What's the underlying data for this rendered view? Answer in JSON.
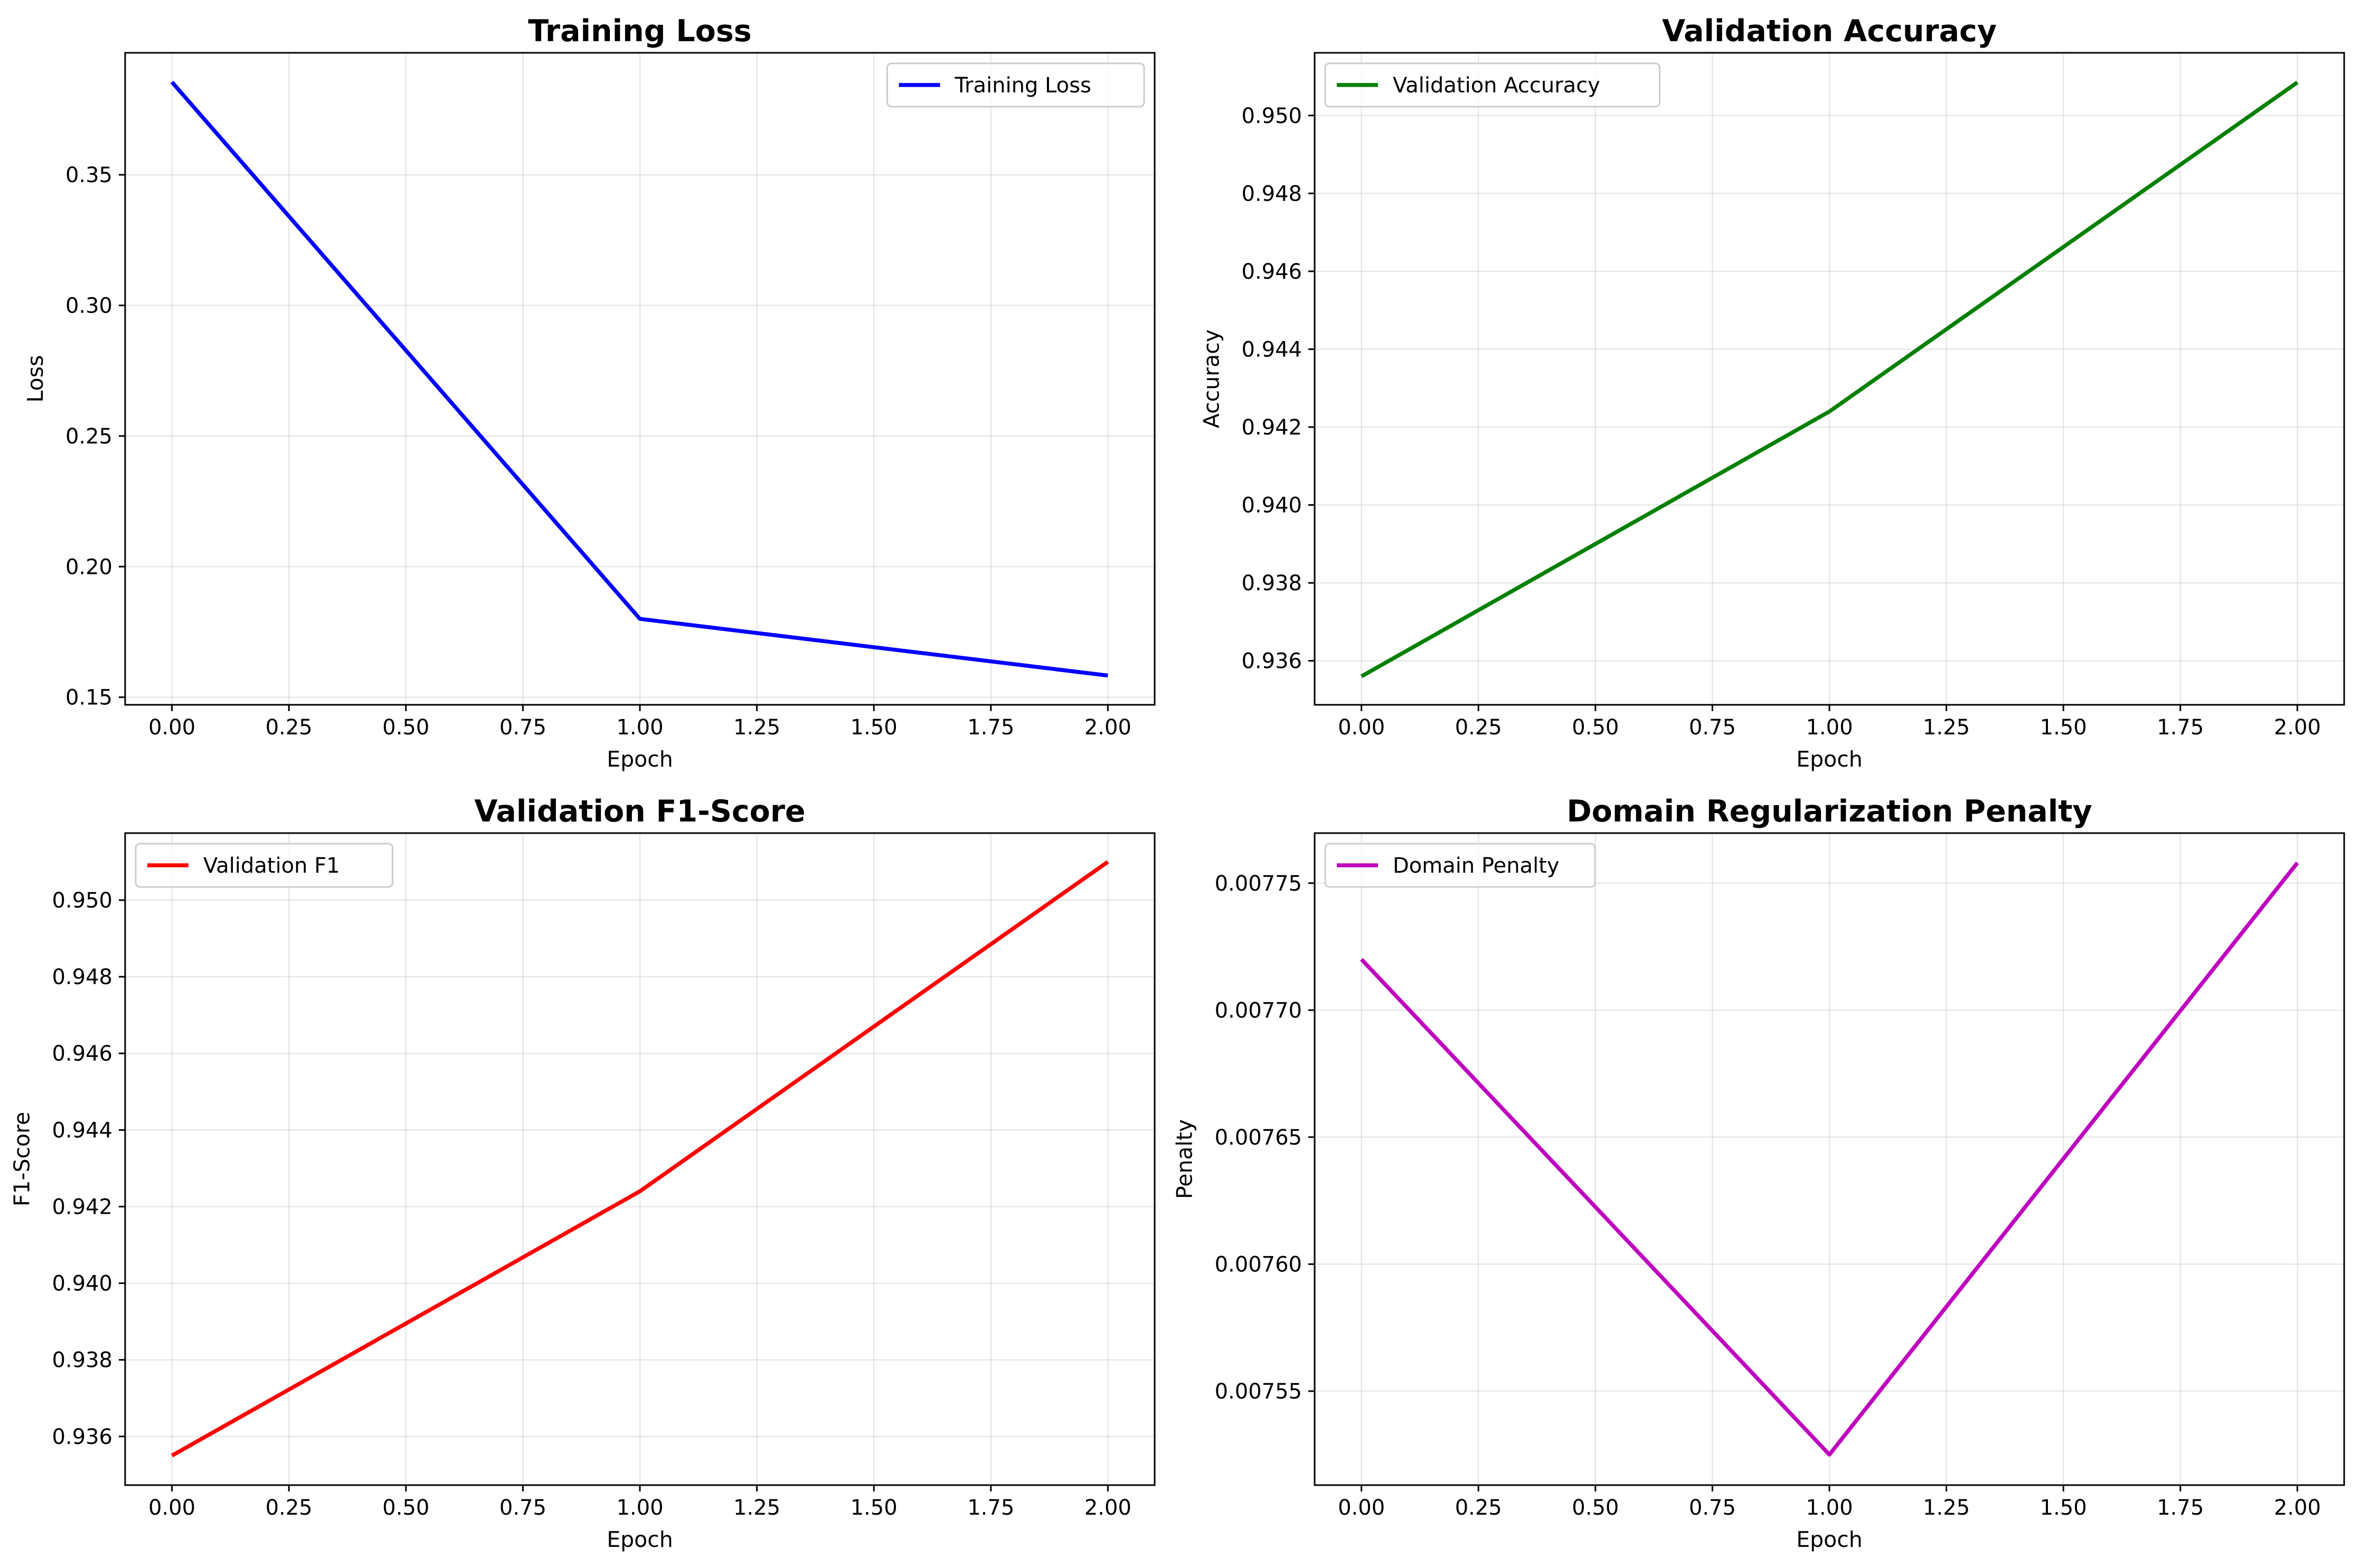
{
  "chart_data": [
    {
      "type": "line",
      "title": "Training Loss",
      "xlabel": "Epoch",
      "ylabel": "Loss",
      "x": [
        0,
        1,
        2
      ],
      "series": [
        {
          "name": "Training Loss",
          "values": [
            0.3855,
            0.18,
            0.1583
          ],
          "color": "#0000ff"
        }
      ],
      "xlim": [
        -0.1,
        2.1
      ],
      "ylim": [
        0.1471,
        0.3967
      ],
      "xticks": [
        0.0,
        0.25,
        0.5,
        0.75,
        1.0,
        1.25,
        1.5,
        1.75,
        2.0
      ],
      "yticks": [
        0.15,
        0.2,
        0.25,
        0.3,
        0.35
      ],
      "xtick_decimals": 2,
      "ytick_decimals": 2,
      "grid": true,
      "legend": "upper right"
    },
    {
      "type": "line",
      "title": "Validation Accuracy",
      "xlabel": "Epoch",
      "ylabel": "Accuracy",
      "x": [
        0,
        1,
        2
      ],
      "series": [
        {
          "name": "Validation Accuracy",
          "values": [
            0.9356,
            0.9424,
            0.95085
          ],
          "color": "#008000"
        }
      ],
      "xlim": [
        -0.1,
        2.1
      ],
      "ylim": [
        0.93487,
        0.95161
      ],
      "xticks": [
        0.0,
        0.25,
        0.5,
        0.75,
        1.0,
        1.25,
        1.5,
        1.75,
        2.0
      ],
      "yticks": [
        0.936,
        0.938,
        0.94,
        0.942,
        0.944,
        0.946,
        0.948,
        0.95
      ],
      "xtick_decimals": 2,
      "ytick_decimals": 3,
      "grid": true,
      "legend": "upper left"
    },
    {
      "type": "line",
      "title": "Validation F1-Score",
      "xlabel": "Epoch",
      "ylabel": "F1-Score",
      "x": [
        0,
        1,
        2
      ],
      "series": [
        {
          "name": "Validation F1",
          "values": [
            0.9355,
            0.9424,
            0.951
          ],
          "color": "#ff0000"
        }
      ],
      "xlim": [
        -0.1,
        2.1
      ],
      "ylim": [
        0.93473,
        0.95175
      ],
      "xticks": [
        0.0,
        0.25,
        0.5,
        0.75,
        1.0,
        1.25,
        1.5,
        1.75,
        2.0
      ],
      "yticks": [
        0.936,
        0.938,
        0.94,
        0.942,
        0.944,
        0.946,
        0.948,
        0.95
      ],
      "xtick_decimals": 2,
      "ytick_decimals": 3,
      "grid": true,
      "legend": "upper left"
    },
    {
      "type": "line",
      "title": "Domain Regularization Penalty",
      "xlabel": "Epoch",
      "ylabel": "Penalty",
      "x": [
        0,
        1,
        2
      ],
      "series": [
        {
          "name": "Domain Penalty",
          "values": [
            0.00772,
            0.007525,
            0.007758
          ],
          "color": "#bf00bf"
        }
      ],
      "xlim": [
        -0.1,
        2.1
      ],
      "ylim": [
        0.007513,
        0.0077697
      ],
      "xticks": [
        0.0,
        0.25,
        0.5,
        0.75,
        1.0,
        1.25,
        1.5,
        1.75,
        2.0
      ],
      "yticks": [
        0.00755,
        0.0076,
        0.00765,
        0.0077,
        0.00775
      ],
      "xtick_decimals": 2,
      "ytick_decimals": 5,
      "grid": true,
      "legend": "upper left"
    }
  ]
}
